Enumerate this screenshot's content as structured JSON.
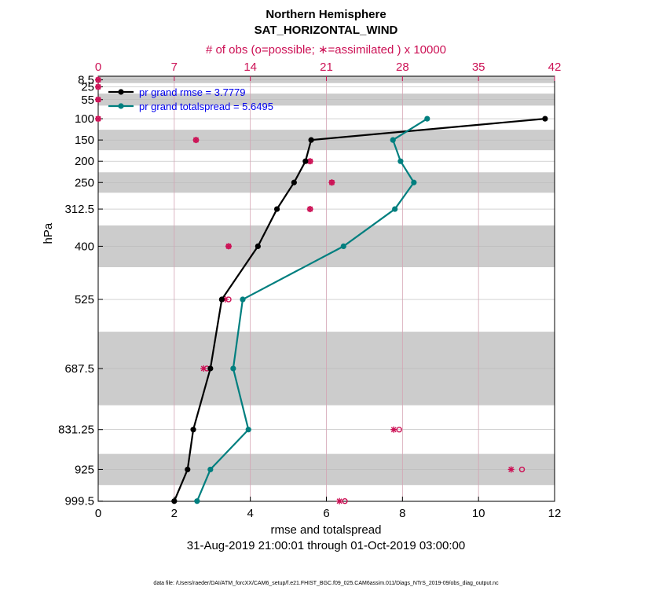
{
  "chart_data": {
    "type": "line",
    "title": "Northern Hemisphere",
    "subtitle": "SAT_HORIZONTAL_WIND",
    "top_axis_label": "# of obs (o=possible; ∗=assimilated ) x 10000",
    "xlabel": "rmse and totalspread",
    "ylabel": "hPa",
    "time_range": "31-Aug-2019 21:00:01 through 01-Oct-2019 03:00:00",
    "footer": "data file: /Users/raeder/DAI/ATM_forcXX/CAM6_setup/f.e21.FHIST_BGC.f09_025.CAM6assim.011/Diags_NTrS_2019-09/obs_diag_output.nc",
    "xlim": [
      0,
      12
    ],
    "x_ticks": [
      "0",
      "2",
      "4",
      "6",
      "8",
      "10",
      "12"
    ],
    "top_xlim": [
      0,
      42
    ],
    "top_ticks": [
      "0",
      "7",
      "14",
      "21",
      "28",
      "35",
      "42"
    ],
    "levels": [
      "8.5",
      "25",
      "55",
      "100",
      "150",
      "200",
      "250",
      "312.5",
      "400",
      "525",
      "687.5",
      "831.25",
      "925",
      "999.5"
    ],
    "level_values": [
      8.5,
      25,
      55,
      100,
      150,
      200,
      250,
      312.5,
      400,
      525,
      687.5,
      831.25,
      925,
      999.5
    ],
    "y_ticks": [
      "8.5",
      "25",
      "55",
      "100",
      "150",
      "200",
      "250",
      "312.5",
      "400",
      "525",
      "687.5",
      "831.25",
      "925",
      "999.5"
    ],
    "layer_edges": [
      0,
      17,
      40,
      70,
      125,
      175,
      225,
      275,
      350,
      450,
      600,
      775,
      887.5,
      962.5,
      1037.5
    ],
    "series": [
      {
        "name": "pr grand rmse = 3.7779",
        "color": "#000000",
        "values": [
          null,
          null,
          null,
          11.75,
          5.6,
          5.45,
          5.15,
          4.7,
          4.2,
          3.25,
          2.95,
          2.5,
          2.35,
          2.0
        ]
      },
      {
        "name": "pr grand totalspread = 5.6495",
        "color": "#007f7f",
        "values": [
          null,
          null,
          null,
          8.65,
          7.75,
          7.95,
          8.3,
          7.8,
          6.45,
          3.8,
          3.55,
          3.95,
          2.95,
          2.6
        ]
      }
    ],
    "obs_possible": [
      0,
      0,
      0,
      0,
      9,
      19.5,
      21.5,
      19.5,
      12,
      12,
      10,
      27.7,
      39,
      22.7
    ],
    "obs_assimilated": [
      0,
      0,
      0,
      0,
      9,
      19.5,
      21.5,
      19.5,
      12,
      11.7,
      9.7,
      27.2,
      38,
      22.2
    ],
    "obs_color": "#cc1155",
    "legend_text_color": "#0000ee",
    "legend_position": "top-left"
  }
}
